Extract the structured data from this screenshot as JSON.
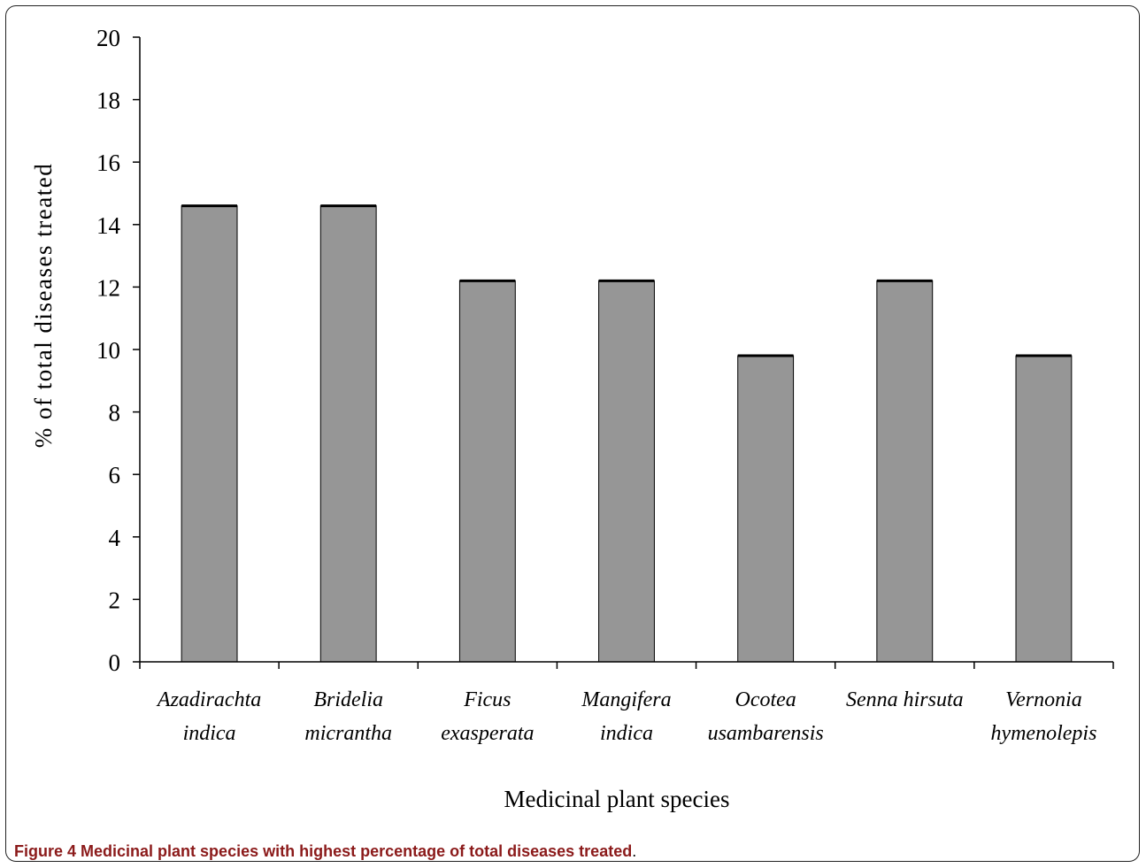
{
  "chart_data": {
    "type": "bar",
    "categories": [
      [
        "Azadirachta",
        "indica"
      ],
      [
        "Bridelia",
        "micrantha"
      ],
      [
        "Ficus",
        "exasperata"
      ],
      [
        "Mangifera",
        "indica"
      ],
      [
        "Ocotea",
        "usambarensis"
      ],
      [
        "Senna hirsuta"
      ],
      [
        "Vernonia",
        "hymenolepis"
      ]
    ],
    "values": [
      14.6,
      14.6,
      12.2,
      12.2,
      9.8,
      12.2,
      9.8
    ],
    "xlabel": "Medicinal plant species",
    "ylabel": "% of total diseases treated",
    "ylim": [
      0,
      20
    ],
    "yticks": [
      "0",
      "2",
      "4",
      "6",
      "8",
      "10",
      "12",
      "14",
      "16",
      "18",
      "20"
    ],
    "grid": false,
    "bar_color": "#969696",
    "bar_edge_color": "#000000"
  },
  "caption": {
    "label": "Figure 4",
    "title": "Medicinal plant species with highest percentage of total diseases treated",
    "end": "."
  }
}
